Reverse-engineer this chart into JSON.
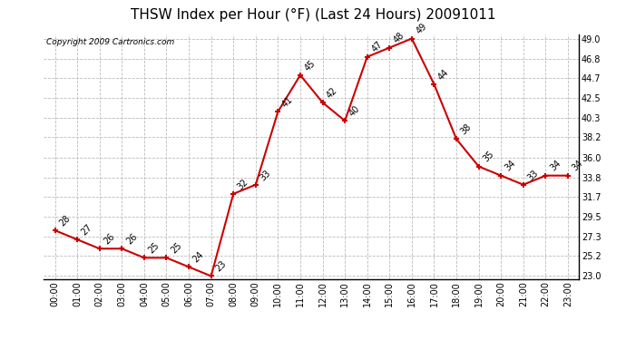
{
  "title": "THSW Index per Hour (°F) (Last 24 Hours) 20091011",
  "copyright": "Copyright 2009 Cartronics.com",
  "hours": [
    "00:00",
    "01:00",
    "02:00",
    "03:00",
    "04:00",
    "05:00",
    "06:00",
    "07:00",
    "08:00",
    "09:00",
    "10:00",
    "11:00",
    "12:00",
    "13:00",
    "14:00",
    "15:00",
    "16:00",
    "17:00",
    "18:00",
    "19:00",
    "20:00",
    "21:00",
    "22:00",
    "23:00"
  ],
  "values": [
    28,
    27,
    26,
    26,
    25,
    25,
    24,
    23,
    32,
    33,
    41,
    45,
    42,
    40,
    47,
    48,
    49,
    44,
    38,
    35,
    34,
    33,
    34,
    34
  ],
  "line_color": "#cc0000",
  "marker_color": "#cc0000",
  "bg_color": "#ffffff",
  "plot_bg_color": "#ffffff",
  "grid_color": "#bbbbbb",
  "title_fontsize": 11,
  "copyright_fontsize": 6.5,
  "label_fontsize": 7,
  "tick_fontsize": 7,
  "ylim_min": 23.0,
  "ylim_max": 49.0,
  "yticks": [
    23.0,
    25.2,
    27.3,
    29.5,
    31.7,
    33.8,
    36.0,
    38.2,
    40.3,
    42.5,
    44.7,
    46.8,
    49.0
  ]
}
